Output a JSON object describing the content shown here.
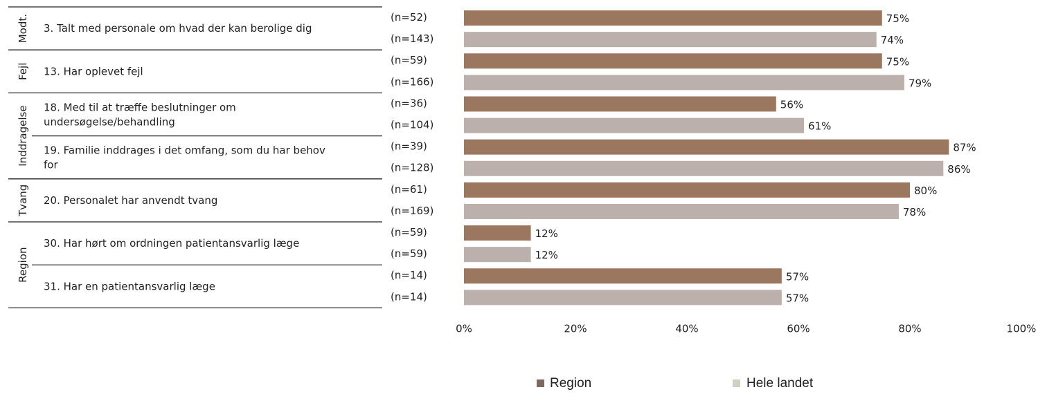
{
  "chart_data": {
    "type": "bar",
    "orientation": "horizontal",
    "xlim": [
      0,
      100
    ],
    "xticks": [
      "0%",
      "20%",
      "40%",
      "60%",
      "80%",
      "100%"
    ],
    "grid": false,
    "legend_position": "bottom",
    "colors": {
      "region": "#9b7760",
      "hele_landet": "#bbb0ab"
    },
    "legend_colors": {
      "region": "#7e6a5c",
      "hele_landet": "#cfcfc2"
    },
    "groups": [
      {
        "label": "Modt.",
        "questions": [
          {
            "text": [
              "3. Talt med personale om hvad der kan berolige dig"
            ],
            "n_region": "(n=52)",
            "n_land": "(n=143)",
            "region": 75,
            "land": 74
          }
        ]
      },
      {
        "label": "Fejl",
        "questions": [
          {
            "text": [
              "13. Har oplevet fejl"
            ],
            "n_region": "(n=59)",
            "n_land": "(n=166)",
            "region": 75,
            "land": 79
          }
        ]
      },
      {
        "label": "Inddragelse",
        "questions": [
          {
            "text": [
              "18. Med til at træffe beslutninger om",
              "undersøgelse/behandling"
            ],
            "n_region": "(n=36)",
            "n_land": "(n=104)",
            "region": 56,
            "land": 61
          },
          {
            "text": [
              "19. Familie inddrages i det omfang, som du har behov",
              "for"
            ],
            "n_region": "(n=39)",
            "n_land": "(n=128)",
            "region": 87,
            "land": 86
          }
        ]
      },
      {
        "label": "Tvang",
        "questions": [
          {
            "text": [
              "20. Personalet har anvendt tvang"
            ],
            "n_region": "(n=61)",
            "n_land": "(n=169)",
            "region": 80,
            "land": 78
          }
        ]
      },
      {
        "label": "Region",
        "questions": [
          {
            "text": [
              "30. Har hørt om ordningen patientansvarlig læge"
            ],
            "n_region": "(n=59)",
            "n_land": "(n=59)",
            "region": 12,
            "land": 12
          },
          {
            "text": [
              "31. Har en patientansvarlig læge"
            ],
            "n_region": "(n=14)",
            "n_land": "(n=14)",
            "region": 57,
            "land": 57
          }
        ]
      }
    ],
    "series": [
      {
        "name": "Region"
      },
      {
        "name": "Hele landet"
      }
    ]
  }
}
